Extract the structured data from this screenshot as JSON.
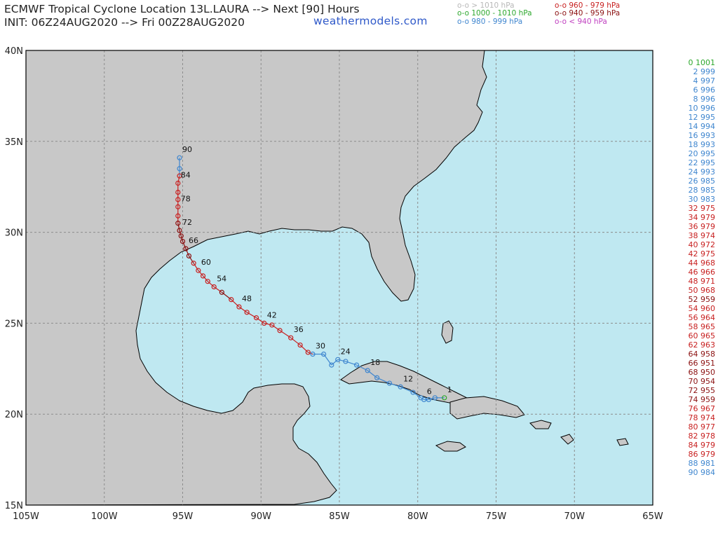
{
  "header": {
    "line1": "ECMWF Tropical Cyclone Location 13L.LAURA --> Next [90] Hours",
    "line2": "INIT: 06Z24AUG2020 --> Fri 00Z28AUG2020",
    "brand": "weathermodels.com"
  },
  "legend": [
    {
      "text": "o-o > 1010 hPa",
      "color": "#b8b8b8"
    },
    {
      "text": "o-o 1000 - 1010 hPa",
      "color": "#2ea82e"
    },
    {
      "text": "o-o 980 - 999 hPa",
      "color": "#3f86cf"
    },
    {
      "text": "o-o 960 - 979 hPa",
      "color": "#c82020"
    },
    {
      "text": "o-o 940 - 959 hPa",
      "color": "#8b1010"
    },
    {
      "text": "o-o < 940 hPa",
      "color": "#c040c0"
    }
  ],
  "colors": {
    "ocean": "#bfe8f1",
    "land": "#c8c8c8",
    "border": "#000000",
    "grid": "#8c8c8c",
    "lake": "#9a8f3a"
  },
  "map": {
    "lon_labels": [
      "105W",
      "100W",
      "95W",
      "90W",
      "85W",
      "80W",
      "75W",
      "70W",
      "65W"
    ],
    "lat_labels": [
      "40N",
      "35N",
      "30N",
      "25N",
      "20N",
      "15N"
    ],
    "grid": true
  },
  "chart_data": {
    "type": "scatter",
    "title": "ECMWF Tropical Cyclone Location 13L.LAURA --> Next [90] Hours",
    "x_unit": "degrees longitude (W negative)",
    "y_unit": "degrees latitude",
    "xlim": [
      -105,
      -65
    ],
    "ylim": [
      15,
      40
    ],
    "track": [
      {
        "h": 0,
        "lon": -78.3,
        "lat": 20.9
      },
      {
        "h": 2,
        "lon": -78.9,
        "lat": 20.9
      },
      {
        "h": 4,
        "lon": -79.3,
        "lat": 20.8
      },
      {
        "h": 6,
        "lon": -79.6,
        "lat": 20.8
      },
      {
        "h": 8,
        "lon": -79.8,
        "lat": 20.9
      },
      {
        "h": 10,
        "lon": -80.3,
        "lat": 21.2
      },
      {
        "h": 12,
        "lon": -81.1,
        "lat": 21.5
      },
      {
        "h": 14,
        "lon": -81.8,
        "lat": 21.7
      },
      {
        "h": 16,
        "lon": -82.6,
        "lat": 22.0
      },
      {
        "h": 18,
        "lon": -83.2,
        "lat": 22.4
      },
      {
        "h": 20,
        "lon": -83.9,
        "lat": 22.7
      },
      {
        "h": 22,
        "lon": -84.6,
        "lat": 22.9
      },
      {
        "h": 24,
        "lon": -85.1,
        "lat": 23.0
      },
      {
        "h": 26,
        "lon": -85.5,
        "lat": 22.7
      },
      {
        "h": 28,
        "lon": -86.0,
        "lat": 23.3
      },
      {
        "h": 30,
        "lon": -86.7,
        "lat": 23.3
      },
      {
        "h": 32,
        "lon": -87.0,
        "lat": 23.4
      },
      {
        "h": 34,
        "lon": -87.5,
        "lat": 23.8
      },
      {
        "h": 36,
        "lon": -88.1,
        "lat": 24.2
      },
      {
        "h": 38,
        "lon": -88.8,
        "lat": 24.6
      },
      {
        "h": 40,
        "lon": -89.3,
        "lat": 24.9
      },
      {
        "h": 42,
        "lon": -89.8,
        "lat": 25.0
      },
      {
        "h": 44,
        "lon": -90.3,
        "lat": 25.3
      },
      {
        "h": 46,
        "lon": -90.9,
        "lat": 25.6
      },
      {
        "h": 48,
        "lon": -91.4,
        "lat": 25.9
      },
      {
        "h": 50,
        "lon": -91.9,
        "lat": 26.3
      },
      {
        "h": 52,
        "lon": -92.5,
        "lat": 26.7
      },
      {
        "h": 54,
        "lon": -93.0,
        "lat": 27.0
      },
      {
        "h": 56,
        "lon": -93.4,
        "lat": 27.3
      },
      {
        "h": 58,
        "lon": -93.7,
        "lat": 27.6
      },
      {
        "h": 60,
        "lon": -94.0,
        "lat": 27.9
      },
      {
        "h": 62,
        "lon": -94.3,
        "lat": 28.3
      },
      {
        "h": 64,
        "lon": -94.6,
        "lat": 28.7
      },
      {
        "h": 66,
        "lon": -94.8,
        "lat": 29.1
      },
      {
        "h": 68,
        "lon": -95.0,
        "lat": 29.5
      },
      {
        "h": 70,
        "lon": -95.1,
        "lat": 29.8
      },
      {
        "h": 72,
        "lon": -95.2,
        "lat": 30.1
      },
      {
        "h": 74,
        "lon": -95.3,
        "lat": 30.5
      },
      {
        "h": 76,
        "lon": -95.3,
        "lat": 30.9
      },
      {
        "h": 78,
        "lon": -95.3,
        "lat": 31.4
      },
      {
        "h": 80,
        "lon": -95.3,
        "lat": 31.8
      },
      {
        "h": 82,
        "lon": -95.3,
        "lat": 32.2
      },
      {
        "h": 84,
        "lon": -95.3,
        "lat": 32.7
      },
      {
        "h": 86,
        "lon": -95.2,
        "lat": 33.1
      },
      {
        "h": 88,
        "lon": -95.2,
        "lat": 33.5
      },
      {
        "h": 90,
        "lon": -95.2,
        "lat": 34.1
      }
    ],
    "track_hour_labels": [
      "1",
      "6",
      "12",
      "18",
      "24",
      "30",
      "36",
      "42",
      "48",
      "54",
      "60",
      "66",
      "72",
      "78",
      "84",
      "90"
    ],
    "hour_pressure_list": [
      {
        "h": 0,
        "p": 1001
      },
      {
        "h": 2,
        "p": 999
      },
      {
        "h": 4,
        "p": 997
      },
      {
        "h": 6,
        "p": 996
      },
      {
        "h": 8,
        "p": 996
      },
      {
        "h": 10,
        "p": 996
      },
      {
        "h": 12,
        "p": 995
      },
      {
        "h": 14,
        "p": 994
      },
      {
        "h": 16,
        "p": 993
      },
      {
        "h": 18,
        "p": 993
      },
      {
        "h": 20,
        "p": 995
      },
      {
        "h": 22,
        "p": 995
      },
      {
        "h": 24,
        "p": 993
      },
      {
        "h": 26,
        "p": 985
      },
      {
        "h": 28,
        "p": 985
      },
      {
        "h": 30,
        "p": 983
      },
      {
        "h": 32,
        "p": 975
      },
      {
        "h": 34,
        "p": 979
      },
      {
        "h": 36,
        "p": 979
      },
      {
        "h": 38,
        "p": 974
      },
      {
        "h": 40,
        "p": 972
      },
      {
        "h": 42,
        "p": 975
      },
      {
        "h": 44,
        "p": 968
      },
      {
        "h": 46,
        "p": 966
      },
      {
        "h": 48,
        "p": 971
      },
      {
        "h": 50,
        "p": 968
      },
      {
        "h": 52,
        "p": 959
      },
      {
        "h": 54,
        "p": 960
      },
      {
        "h": 56,
        "p": 964
      },
      {
        "h": 58,
        "p": 965
      },
      {
        "h": 60,
        "p": 965
      },
      {
        "h": 62,
        "p": 963
      },
      {
        "h": 64,
        "p": 958
      },
      {
        "h": 66,
        "p": 951
      },
      {
        "h": 68,
        "p": 950
      },
      {
        "h": 70,
        "p": 954
      },
      {
        "h": 72,
        "p": 955
      },
      {
        "h": 74,
        "p": 959
      },
      {
        "h": 76,
        "p": 967
      },
      {
        "h": 78,
        "p": 974
      },
      {
        "h": 80,
        "p": 977
      },
      {
        "h": 82,
        "p": 978
      },
      {
        "h": 84,
        "p": 979
      },
      {
        "h": 86,
        "p": 979
      },
      {
        "h": 88,
        "p": 981
      },
      {
        "h": 90,
        "p": 984
      }
    ]
  },
  "side_list_lines": [
    "0 1001",
    "2 999",
    "4 997",
    "6 996",
    "8 996",
    "10 996",
    "12 995",
    "14 994",
    "16 993",
    "18 993",
    "20 995",
    "22 995",
    "24 993",
    "26 985",
    "28 985",
    "30 983",
    "32 975",
    "34 979",
    "36 979",
    "38 974",
    "40 972",
    "42 975",
    "44 968",
    "46 966",
    "48 971",
    "50 968",
    "52 959",
    "54 960",
    "56 964",
    "58 965",
    "60 965",
    "62 963",
    "64 958",
    "66 951",
    "68 950",
    "70 954",
    "72 955",
    "74 959",
    "76 967",
    "78 974",
    "80 977",
    "82 978",
    "84 979",
    "86 979",
    "88 981",
    "90 984"
  ]
}
